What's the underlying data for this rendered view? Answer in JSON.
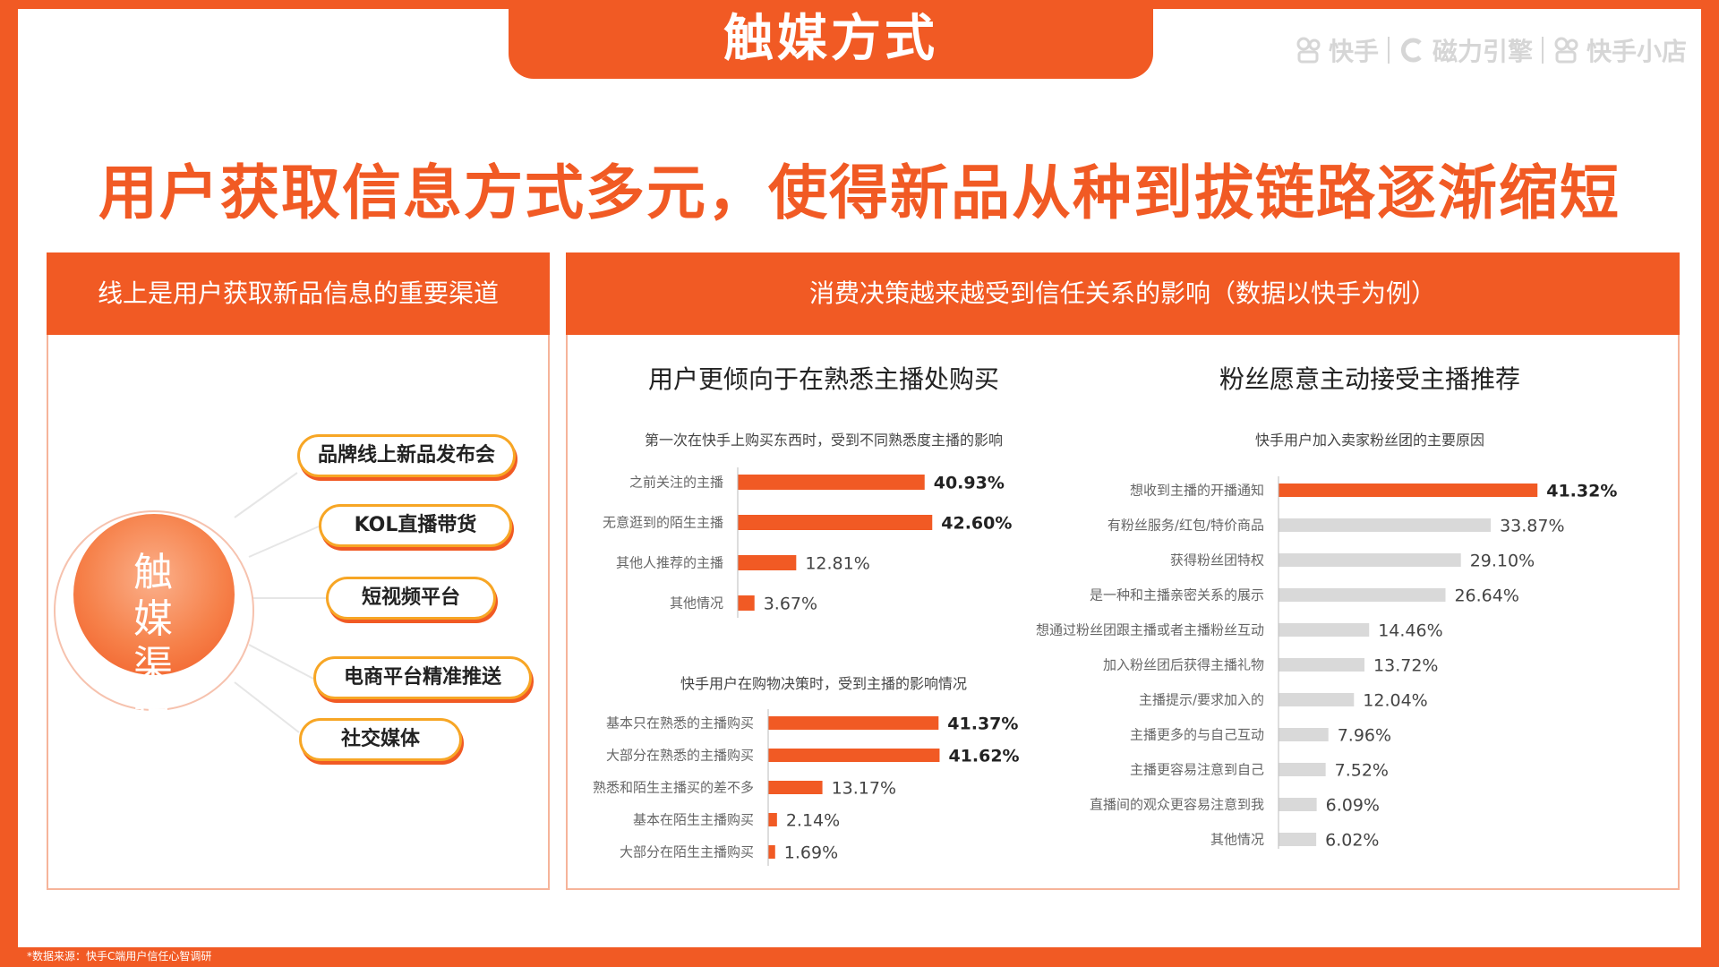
{
  "page_title": "触媒方式",
  "brands": [
    {
      "icon": "kuaishou-logo-icon",
      "label": "快手"
    },
    {
      "icon": "cili-engine-logo-icon",
      "label": "磁力引擎"
    },
    {
      "icon": "kuaishou-shop-logo-icon",
      "label": "快手小店"
    }
  ],
  "headline": "用户获取信息方式多元，使得新品从种到拔链路逐渐缩短",
  "left_panel": {
    "header": "线上是用户获取新品信息的重要渠道",
    "hub_label": "触媒渠道",
    "channels": [
      "品牌线上新品发布会",
      "KOL直播带货",
      "短视频平台",
      "电商平台精准推送",
      "社交媒体"
    ]
  },
  "right_panel": {
    "header": "消费决策越来越受到信任关系的影响（数据以快手为例）",
    "left_title": "用户更倾向于在熟悉主播处购买",
    "right_title": "粉丝愿意主动接受主播推荐"
  },
  "colors": {
    "accent": "#f15a24",
    "gray_bar": "#d9d9d9",
    "pill_border": "#f7a625"
  },
  "footnote": "*数据来源：快手C端用户信任心智调研",
  "chart_data": [
    {
      "type": "bar",
      "orientation": "horizontal",
      "title": "第一次在快手上购买东西时，受到不同熟悉度主播的影响",
      "categories": [
        "之前关注的主播",
        "无意逛到的陌生主播",
        "其他人推荐的主播",
        "其他情况"
      ],
      "values": [
        40.93,
        42.6,
        12.81,
        3.67
      ],
      "value_labels": [
        "40.93%",
        "42.60%",
        "12.81%",
        "3.67%"
      ],
      "bold_labels": [
        true,
        true,
        false,
        false
      ]
    },
    {
      "type": "bar",
      "orientation": "horizontal",
      "title": "快手用户在购物决策时，受到主播的影响情况",
      "categories": [
        "基本只在熟悉的主播购买",
        "大部分在熟悉的主播购买",
        "熟悉和陌生主播买的差不多",
        "基本在陌生主播购买",
        "大部分在陌生主播购买"
      ],
      "values": [
        41.37,
        41.62,
        13.17,
        2.14,
        1.69
      ],
      "value_labels": [
        "41.37%",
        "41.62%",
        "13.17%",
        "2.14%",
        "1.69%"
      ],
      "bold_labels": [
        true,
        true,
        false,
        false,
        false
      ]
    },
    {
      "type": "bar",
      "orientation": "horizontal",
      "title": "快手用户加入卖家粉丝团的主要原因",
      "categories": [
        "想收到主播的开播通知",
        "有粉丝服务/红包/特价商品",
        "获得粉丝团特权",
        "是一种和主播亲密关系的展示",
        "想通过粉丝团跟主播或者主播粉丝互动",
        "加入粉丝团后获得主播礼物",
        "主播提示/要求加入的",
        "主播更多的与自己互动",
        "主播更容易注意到自己",
        "直播间的观众更容易注意到我",
        "其他情况"
      ],
      "values": [
        41.32,
        33.87,
        29.1,
        26.64,
        14.46,
        13.72,
        12.04,
        7.96,
        7.52,
        6.09,
        6.02
      ],
      "value_labels": [
        "41.32%",
        "33.87%",
        "29.10%",
        "26.64%",
        "14.46%",
        "13.72%",
        "12.04%",
        "7.96%",
        "7.52%",
        "6.09%",
        "6.02%"
      ],
      "highlight_first": true
    }
  ]
}
